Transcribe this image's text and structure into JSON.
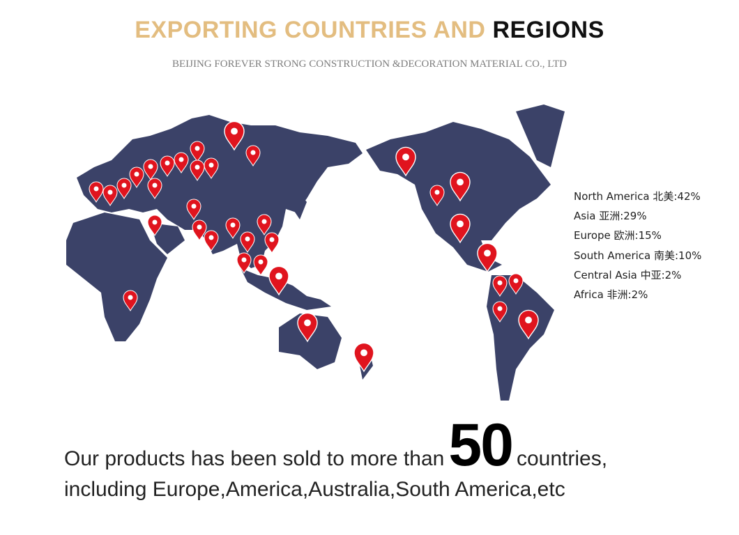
{
  "header": {
    "title_part1": "EXPORTING COUNTRIES AND",
    "title_part2": "REGIONS",
    "subtitle": "BEIJING FOREVER STRONG CONSTRUCTION &DECORATION MATERIAL CO., LTD"
  },
  "legend": [
    {
      "label": "North America 北美:42%",
      "region": "North America",
      "percent": 42
    },
    {
      "label": "Asia 亚洲:29%",
      "region": "Asia",
      "percent": 29
    },
    {
      "label": "Europe 欧洲:15%",
      "region": "Europe",
      "percent": 15
    },
    {
      "label": "South America 南美:10%",
      "region": "South America",
      "percent": 10
    },
    {
      "label": "Central Asia 中亚:2%",
      "region": "Central Asia",
      "percent": 2
    },
    {
      "label": "Africa 非洲:2%",
      "region": "Africa",
      "percent": 2
    }
  ],
  "footer": {
    "line1_before": "Our products has been sold to more than",
    "count": "50",
    "line1_after": "countries,",
    "line2": "including Europe,America,Australia,South America,etc"
  },
  "colors": {
    "title_accent": "#e3bd80",
    "land": "#3b4268",
    "pin": "#e0141e"
  },
  "icons": {
    "pin": "map-pin-icon"
  }
}
